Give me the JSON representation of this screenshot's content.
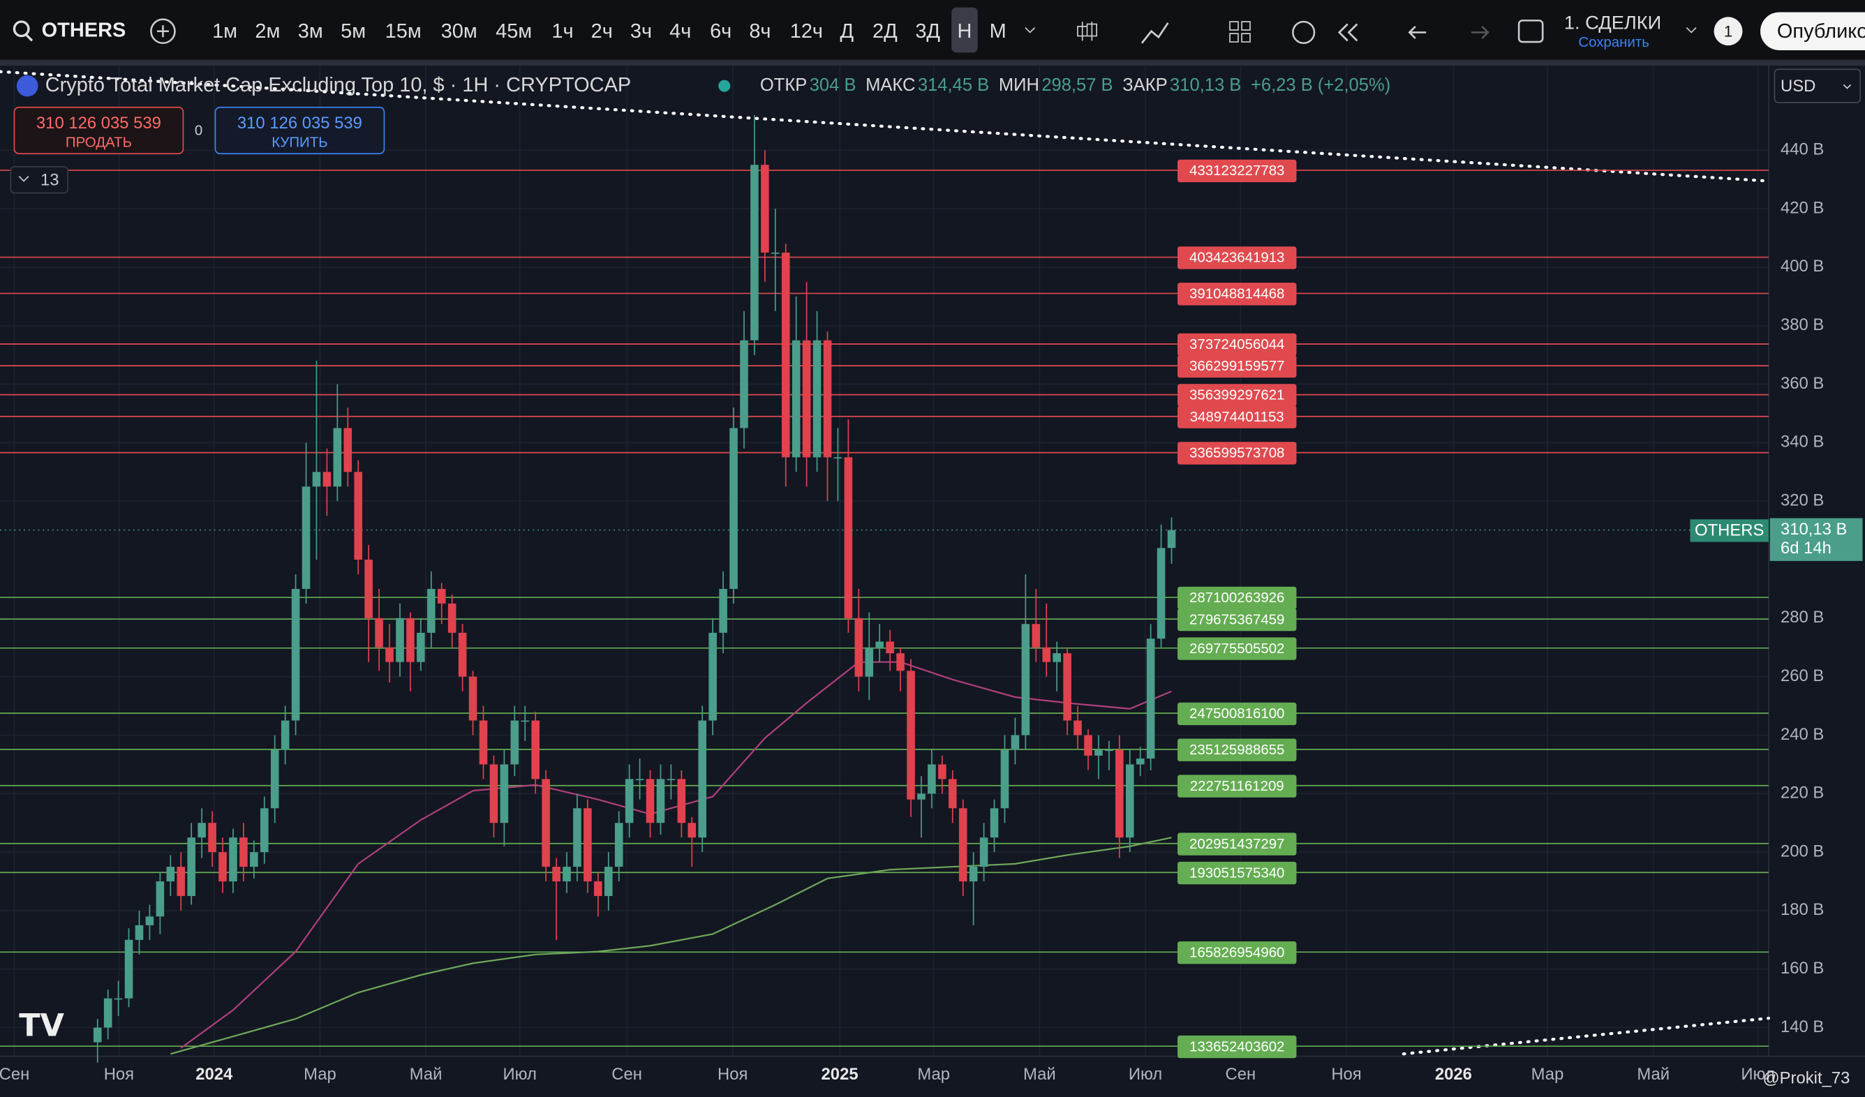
{
  "toolbar": {
    "symbol": "OTHERS",
    "intervals": [
      "1м",
      "2м",
      "3м",
      "5м",
      "15м",
      "30м",
      "45м",
      "1ч",
      "2ч",
      "3ч",
      "4ч",
      "6ч",
      "8ч",
      "12ч",
      "Д",
      "2Д",
      "3Д",
      "Н",
      "М"
    ],
    "active_interval": "Н",
    "layout": "1. СДЕЛКИ",
    "save": "Сохранить",
    "badge": "1",
    "publish": "Опубликовать"
  },
  "legend": {
    "title": "Crypto Total Market Cap Excluding Top 10, $ · 1H · CRYPTOCAP",
    "items": [
      {
        "label": "ОТКР",
        "value": "304 B"
      },
      {
        "label": "МАКС",
        "value": "314,45 B"
      },
      {
        "label": "МИН",
        "value": "298,57 B"
      },
      {
        "label": "ЗАКР",
        "value": "310,13 B"
      }
    ],
    "change": "+6,23 B (+2,05%)"
  },
  "trade": {
    "sell_price": "310 126 035 539",
    "sell": "ПРОДАТЬ",
    "spread": "0",
    "buy_price": "310 126 035 539",
    "buy": "КУПИТЬ"
  },
  "indicators_count": 13,
  "currency": "USD",
  "watermark": "@Prokit_73",
  "chart_data": {
    "type": "candlestick",
    "up_color": "#4a9e8a",
    "down_color": "#e0424e",
    "ylim": [
      130.2,
      468.9
    ],
    "yticks": [
      {
        "value": 140,
        "label": "140 B"
      },
      {
        "value": 160,
        "label": "160 B"
      },
      {
        "value": 180,
        "label": "180 B"
      },
      {
        "value": 200,
        "label": "200 B"
      },
      {
        "value": 220,
        "label": "220 B"
      },
      {
        "value": 240,
        "label": "240 B"
      },
      {
        "value": 260,
        "label": "260 B"
      },
      {
        "value": 280,
        "label": "280 B"
      },
      {
        "value": 320,
        "label": "320 B"
      },
      {
        "value": 340,
        "label": "340 B"
      },
      {
        "value": 360,
        "label": "360 B"
      },
      {
        "value": 380,
        "label": "380 B"
      },
      {
        "value": 400,
        "label": "400 B"
      },
      {
        "value": 420,
        "label": "420 B"
      },
      {
        "value": 440,
        "label": "440 B"
      }
    ],
    "xlabels": [
      "Сен",
      "Ноя",
      "2024",
      "Мар",
      "Май",
      "Июл",
      "Сен",
      "Ноя",
      "2025",
      "Мар",
      "Май",
      "Июл",
      "Сен",
      "Ноя",
      "2026",
      "Мар",
      "Май",
      "Июл"
    ],
    "candles": [
      [
        135,
        143,
        128,
        140
      ],
      [
        140,
        153,
        136,
        150
      ],
      [
        150,
        156,
        144,
        150
      ],
      [
        150,
        174,
        147,
        170
      ],
      [
        170,
        180,
        165,
        175
      ],
      [
        175,
        182,
        170,
        178
      ],
      [
        178,
        193,
        172,
        190
      ],
      [
        190,
        199,
        185,
        195
      ],
      [
        195,
        200,
        180,
        185
      ],
      [
        185,
        210,
        182,
        205
      ],
      [
        205,
        215,
        198,
        210
      ],
      [
        210,
        214,
        195,
        200
      ],
      [
        200,
        205,
        186,
        190
      ],
      [
        190,
        208,
        186,
        205
      ],
      [
        205,
        210,
        190,
        195
      ],
      [
        195,
        204,
        191,
        200
      ],
      [
        200,
        219,
        196,
        215
      ],
      [
        215,
        240,
        210,
        235
      ],
      [
        235,
        250,
        230,
        245
      ],
      [
        245,
        295,
        240,
        290
      ],
      [
        290,
        340,
        285,
        325
      ],
      [
        325,
        368,
        300,
        330
      ],
      [
        330,
        338,
        315,
        325
      ],
      [
        325,
        360,
        320,
        345
      ],
      [
        345,
        352,
        325,
        330
      ],
      [
        330,
        334,
        295,
        300
      ],
      [
        300,
        305,
        265,
        280
      ],
      [
        280,
        290,
        262,
        270
      ],
      [
        270,
        278,
        258,
        265
      ],
      [
        265,
        285,
        260,
        280
      ],
      [
        280,
        282,
        255,
        265
      ],
      [
        265,
        280,
        262,
        275
      ],
      [
        275,
        296,
        270,
        290
      ],
      [
        290,
        292,
        278,
        285
      ],
      [
        285,
        288,
        270,
        275
      ],
      [
        275,
        278,
        255,
        260
      ],
      [
        260,
        262,
        240,
        245
      ],
      [
        245,
        250,
        225,
        230
      ],
      [
        230,
        233,
        205,
        210
      ],
      [
        210,
        235,
        202,
        230
      ],
      [
        230,
        250,
        226,
        245
      ],
      [
        245,
        250,
        238,
        245
      ],
      [
        245,
        248,
        220,
        225
      ],
      [
        225,
        228,
        190,
        195
      ],
      [
        195,
        198,
        170,
        190
      ],
      [
        190,
        200,
        186,
        195
      ],
      [
        195,
        220,
        190,
        215
      ],
      [
        215,
        218,
        186,
        190
      ],
      [
        190,
        193,
        178,
        185
      ],
      [
        185,
        200,
        180,
        195
      ],
      [
        195,
        214,
        190,
        210
      ],
      [
        210,
        230,
        205,
        225
      ],
      [
        225,
        232,
        218,
        225
      ],
      [
        225,
        228,
        205,
        210
      ],
      [
        210,
        230,
        206,
        225
      ],
      [
        225,
        230,
        218,
        225
      ],
      [
        225,
        228,
        205,
        210
      ],
      [
        210,
        212,
        195,
        205
      ],
      [
        205,
        250,
        200,
        245
      ],
      [
        245,
        280,
        240,
        275
      ],
      [
        275,
        296,
        268,
        290
      ],
      [
        290,
        352,
        285,
        345
      ],
      [
        345,
        385,
        338,
        375
      ],
      [
        375,
        452,
        370,
        435
      ],
      [
        435,
        440,
        395,
        405
      ],
      [
        405,
        420,
        385,
        405
      ],
      [
        405,
        408,
        325,
        335
      ],
      [
        335,
        390,
        330,
        375
      ],
      [
        375,
        395,
        325,
        335
      ],
      [
        335,
        385,
        330,
        375
      ],
      [
        375,
        378,
        320,
        335
      ],
      [
        335,
        345,
        320,
        335
      ],
      [
        335,
        348,
        275,
        280
      ],
      [
        280,
        290,
        255,
        260
      ],
      [
        260,
        282,
        252,
        270
      ],
      [
        270,
        278,
        265,
        272
      ],
      [
        272,
        276,
        262,
        268
      ],
      [
        268,
        270,
        255,
        262
      ],
      [
        262,
        266,
        212,
        218
      ],
      [
        218,
        226,
        205,
        220
      ],
      [
        220,
        235,
        215,
        230
      ],
      [
        230,
        233,
        220,
        225
      ],
      [
        225,
        228,
        210,
        215
      ],
      [
        215,
        218,
        185,
        190
      ],
      [
        190,
        200,
        175,
        195
      ],
      [
        195,
        210,
        190,
        205
      ],
      [
        205,
        218,
        200,
        215
      ],
      [
        215,
        240,
        210,
        235
      ],
      [
        235,
        246,
        230,
        240
      ],
      [
        240,
        295,
        235,
        278
      ],
      [
        278,
        290,
        265,
        270
      ],
      [
        270,
        285,
        260,
        265
      ],
      [
        265,
        272,
        255,
        268
      ],
      [
        268,
        270,
        240,
        245
      ],
      [
        245,
        250,
        235,
        240
      ],
      [
        240,
        242,
        228,
        233
      ],
      [
        233,
        240,
        225,
        235
      ],
      [
        235,
        238,
        228,
        235
      ],
      [
        235,
        240,
        198,
        205
      ],
      [
        205,
        235,
        200,
        230
      ],
      [
        230,
        236,
        226,
        232
      ],
      [
        232,
        278,
        228,
        273
      ],
      [
        273,
        312,
        270,
        304
      ],
      [
        304,
        314.45,
        298.57,
        310.13
      ]
    ],
    "ma": [
      {
        "color": "#b0407e",
        "points": [
          [
            8,
            133
          ],
          [
            13,
            146
          ],
          [
            19,
            166
          ],
          [
            25,
            196
          ],
          [
            31,
            211
          ],
          [
            36,
            221
          ],
          [
            42,
            223
          ],
          [
            48,
            218
          ],
          [
            53,
            213
          ],
          [
            59,
            219
          ],
          [
            64,
            239
          ],
          [
            68,
            251
          ],
          [
            73,
            265
          ],
          [
            77,
            265
          ],
          [
            82,
            259
          ],
          [
            88,
            253
          ],
          [
            93,
            251
          ],
          [
            99,
            249
          ],
          [
            103,
            255
          ]
        ]
      },
      {
        "color": "#6fa85a",
        "points": [
          [
            7,
            131
          ],
          [
            13,
            137
          ],
          [
            19,
            143
          ],
          [
            25,
            152
          ],
          [
            31,
            158
          ],
          [
            36,
            162
          ],
          [
            42,
            165
          ],
          [
            48,
            166
          ],
          [
            53,
            168
          ],
          [
            59,
            172
          ],
          [
            65,
            182
          ],
          [
            70,
            191
          ],
          [
            76,
            194
          ],
          [
            82,
            195
          ],
          [
            88,
            196
          ],
          [
            93,
            199
          ],
          [
            99,
            202
          ],
          [
            103,
            205
          ]
        ]
      }
    ],
    "red_color": "#e04a4f",
    "green_color": "#64ad52",
    "red_levels": [
      433123227783,
      403423641913,
      391048814468,
      373724056044,
      366299159577,
      356399297621,
      348974401153,
      336599573708
    ],
    "green_levels": [
      287100263926,
      279675367459,
      269775505502,
      247500816100,
      235125988655,
      222751161209,
      202951437297,
      193051575340,
      165826954960,
      133652403602
    ],
    "last_symbol": "OTHERS",
    "last_price": {
      "value": 310.13,
      "label": "310,13 B"
    },
    "countdown": "6d 14h"
  }
}
